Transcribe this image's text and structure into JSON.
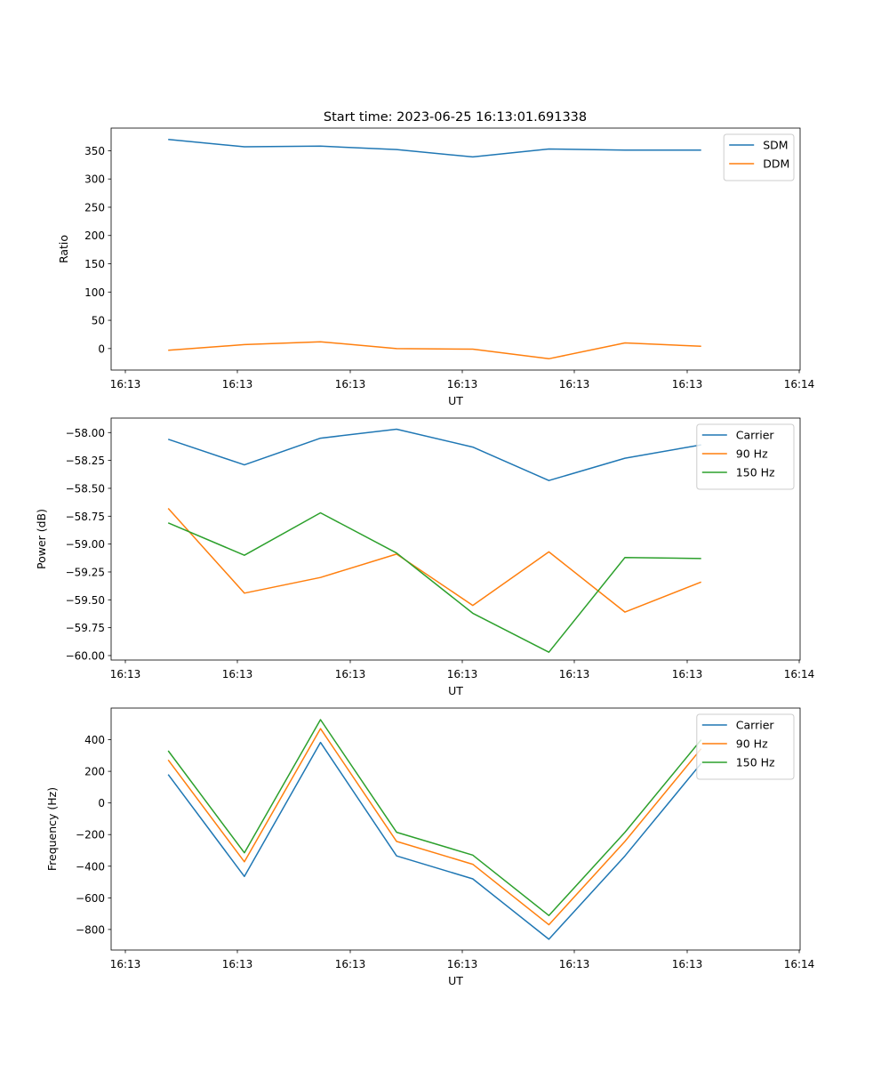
{
  "figure": {
    "title": "Start time: 2023-06-25 16:13:01.691338"
  },
  "colors": {
    "blue": "#1f77b4",
    "orange": "#ff7f0e",
    "green": "#2ca02c",
    "axes": "#000000",
    "legend_border": "#cccccc"
  },
  "chart_data": [
    {
      "type": "line",
      "title": "Start time: 2023-06-25 16:13:01.691338",
      "xlabel": "UT",
      "ylabel": "Ratio",
      "x_tick_labels": [
        "16:13",
        "16:13",
        "16:13",
        "16:13",
        "16:13",
        "16:13",
        "16:14"
      ],
      "x": [
        1,
        2,
        3,
        4,
        5,
        6,
        7,
        8
      ],
      "xlim": [
        0.25,
        9.3
      ],
      "ylim": [
        -38,
        390
      ],
      "yticks": [
        0,
        50,
        100,
        150,
        200,
        250,
        300,
        350
      ],
      "ytick_labels": [
        "0",
        "50",
        "100",
        "150",
        "200",
        "250",
        "300",
        "350"
      ],
      "legend_position": "top-right",
      "grid": false,
      "series": [
        {
          "name": "SDM",
          "color": "#1f77b4",
          "values": [
            370,
            357,
            358,
            352,
            339,
            353,
            351,
            351
          ]
        },
        {
          "name": "DDM",
          "color": "#ff7f0e",
          "values": [
            -3,
            7,
            12,
            0,
            -1,
            -18,
            10,
            4
          ]
        }
      ]
    },
    {
      "type": "line",
      "xlabel": "UT",
      "ylabel": "Power (dB)",
      "x_tick_labels": [
        "16:13",
        "16:13",
        "16:13",
        "16:13",
        "16:13",
        "16:13",
        "16:14"
      ],
      "x": [
        1,
        2,
        3,
        4,
        5,
        6,
        7,
        8
      ],
      "xlim": [
        0.25,
        9.3
      ],
      "ylim": [
        -60.04,
        -57.87
      ],
      "yticks": [
        -60.0,
        -59.75,
        -59.5,
        -59.25,
        -59.0,
        -58.75,
        -58.5,
        -58.25,
        -58.0
      ],
      "ytick_labels": [
        "−60.00",
        "−59.75",
        "−59.50",
        "−59.25",
        "−59.00",
        "−58.75",
        "−58.50",
        "−58.25",
        "−58.00"
      ],
      "legend_position": "top-right",
      "grid": false,
      "series": [
        {
          "name": "Carrier",
          "color": "#1f77b4",
          "values": [
            -58.06,
            -58.29,
            -58.05,
            -57.97,
            -58.13,
            -58.43,
            -58.23,
            -58.11
          ]
        },
        {
          "name": "90 Hz",
          "color": "#ff7f0e",
          "values": [
            -58.68,
            -59.44,
            -59.3,
            -59.09,
            -59.55,
            -59.07,
            -59.61,
            -59.34
          ]
        },
        {
          "name": "150 Hz",
          "color": "#2ca02c",
          "values": [
            -58.81,
            -59.1,
            -58.72,
            -59.08,
            -59.62,
            -59.97,
            -59.12,
            -59.13
          ]
        }
      ]
    },
    {
      "type": "line",
      "xlabel": "UT",
      "ylabel": "Frequency (Hz)",
      "x_tick_labels": [
        "16:13",
        "16:13",
        "16:13",
        "16:13",
        "16:13",
        "16:13",
        "16:14"
      ],
      "x": [
        1,
        2,
        3,
        4,
        5,
        6,
        7,
        8
      ],
      "xlim": [
        0.25,
        9.3
      ],
      "ylim": [
        -930,
        600
      ],
      "yticks": [
        -800,
        -600,
        -400,
        -200,
        0,
        200,
        400
      ],
      "ytick_labels": [
        "−800",
        "−600",
        "−400",
        "−200",
        "0",
        "200",
        "400"
      ],
      "legend_position": "top-right",
      "grid": false,
      "series": [
        {
          "name": "Carrier",
          "color": "#1f77b4",
          "values": [
            180,
            -465,
            383,
            -335,
            -480,
            -862,
            -335,
            250
          ]
        },
        {
          "name": "90 Hz",
          "color": "#ff7f0e",
          "values": [
            272,
            -372,
            470,
            -243,
            -388,
            -770,
            -243,
            343
          ]
        },
        {
          "name": "150 Hz",
          "color": "#2ca02c",
          "values": [
            330,
            -315,
            527,
            -185,
            -330,
            -712,
            -185,
            400
          ]
        }
      ]
    }
  ]
}
